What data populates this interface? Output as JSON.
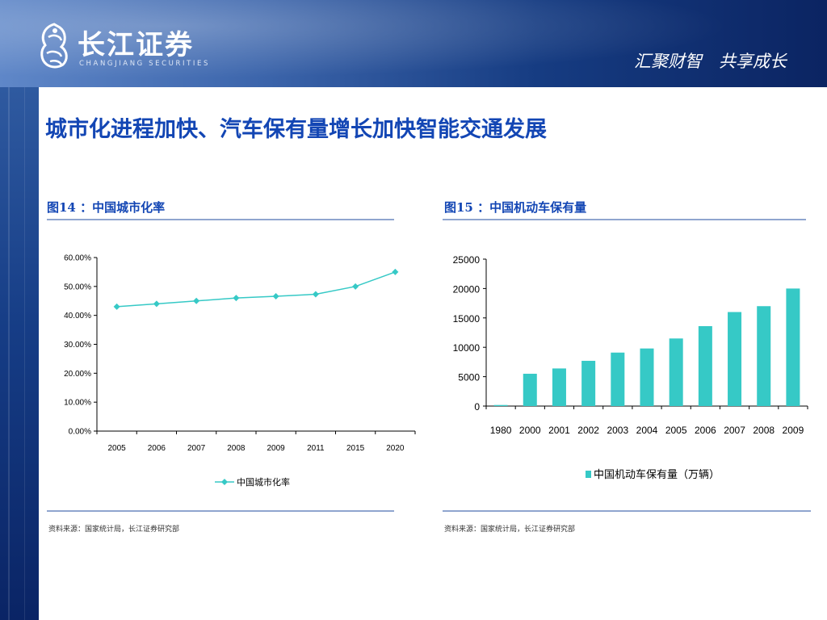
{
  "header": {
    "logo_cn": "长江证券",
    "logo_en": "CHANGJIANG SECURITIES",
    "slogan": "汇聚财智　共享成长"
  },
  "main_title": "城市化进程加快、汽车保有量增长加快智能交通发展",
  "colors": {
    "accent": "#1346b4",
    "series": "#36c9c6",
    "header_dark": "#0b2462"
  },
  "figures": [
    {
      "title": "图14 ：中国城市化率",
      "source": "资料来源：国家统计局，长江证券研究部"
    },
    {
      "title": "图15 ：中国机动车保有量",
      "source": "资料来源：国家统计局，长江证券研究部"
    }
  ],
  "chart_data": [
    {
      "type": "line",
      "categories": [
        "2005",
        "2006",
        "2007",
        "2008",
        "2009",
        "2011",
        "2015",
        "2020"
      ],
      "series": [
        {
          "name": "中国城市化率",
          "values": [
            0.43,
            0.44,
            0.45,
            0.46,
            0.466,
            0.473,
            0.5,
            0.55
          ]
        }
      ],
      "ylim": [
        0,
        0.6
      ],
      "yticks": [
        "0.00%",
        "10.00%",
        "20.00%",
        "30.00%",
        "40.00%",
        "50.00%",
        "60.00%"
      ],
      "legend": "bottom",
      "marker": "diamond"
    },
    {
      "type": "bar",
      "categories": [
        "1980",
        "2000",
        "2001",
        "2002",
        "2003",
        "2004",
        "2005",
        "2006",
        "2007",
        "2008",
        "2009"
      ],
      "series": [
        {
          "name": "中国机动车保有量（万辆）",
          "values": [
            180,
            5500,
            6400,
            7700,
            9100,
            9800,
            11500,
            13600,
            16000,
            17000,
            20000
          ]
        }
      ],
      "ylim": [
        0,
        25000
      ],
      "yticks": [
        "0",
        "5000",
        "10000",
        "15000",
        "20000",
        "25000"
      ],
      "legend": "bottom"
    }
  ]
}
